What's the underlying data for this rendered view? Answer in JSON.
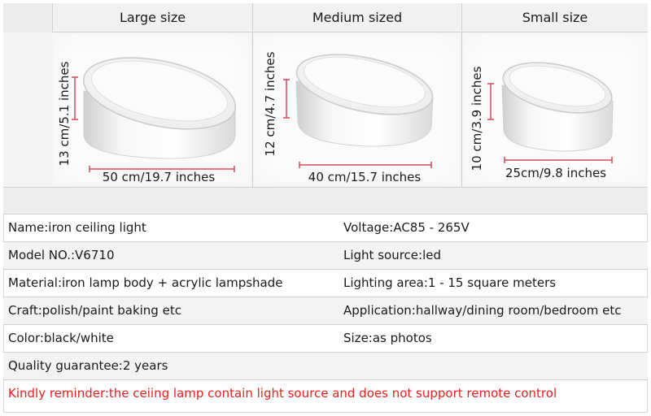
{
  "sizes": [
    {
      "header": "Large size",
      "height_label": "13 cm/5.1 inches",
      "width_label": "50 cm/19.7 inches"
    },
    {
      "header": "Medium sized",
      "height_label": "12 cm/4.7 inches",
      "width_label": "40 cm/15.7 inches"
    },
    {
      "header": "Small size",
      "height_label": "10 cm/3.9 inches",
      "width_label": "25cm/9.8 inches"
    }
  ],
  "specs": [
    {
      "left": "Name:iron ceiling light",
      "right": "Voltage:AC85 - 265V"
    },
    {
      "left": "Model NO.:V6710",
      "right": "Light source:led"
    },
    {
      "left": "Material:iron lamp body + acrylic lampshade",
      "right": "Lighting area:1 - 15 square meters"
    },
    {
      "left": "Craft:polish/paint baking etc",
      "right": "Application:hallway/dining room/bedroom etc"
    },
    {
      "left": "Color:black/white",
      "right": "Size:as photos"
    },
    {
      "left": "Quality guarantee:2 years",
      "right": ""
    }
  ],
  "reminder": "Kindly reminder:the ceiing lamp contain light source and does not support remote control",
  "colors": {
    "accent_red": "#e8201d",
    "dimension_line": "#d24a5a",
    "header_bg": "#f1f1f1"
  }
}
